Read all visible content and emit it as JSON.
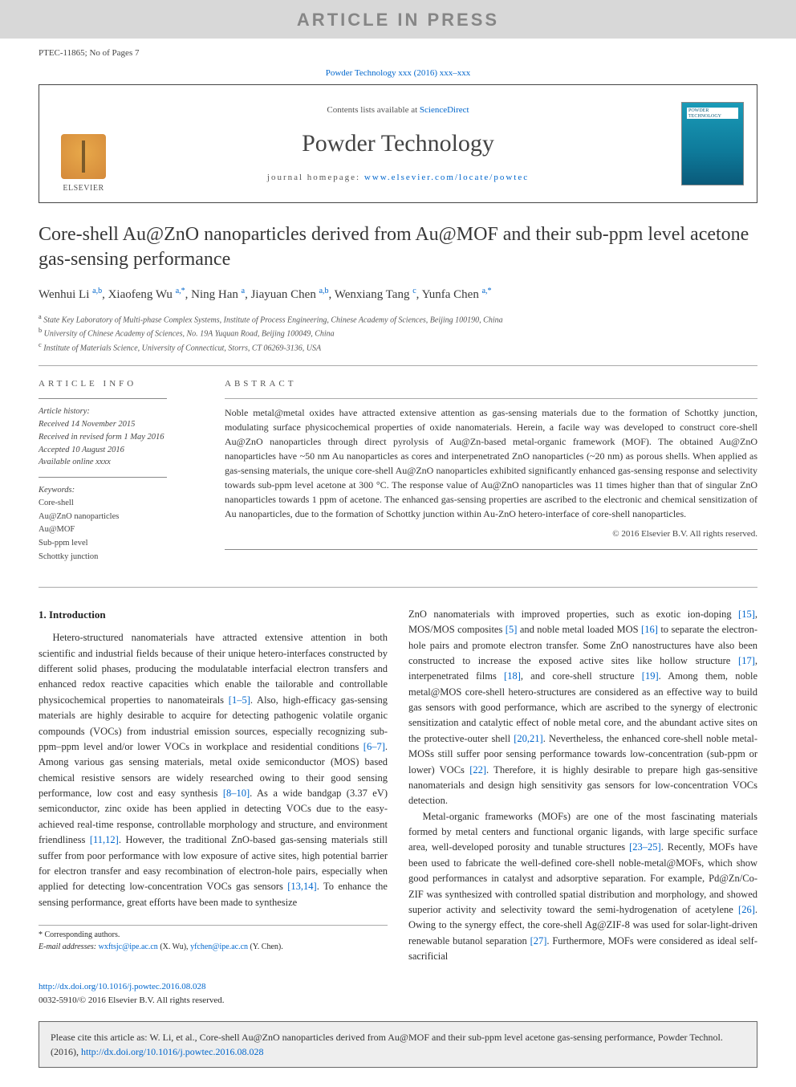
{
  "watermark": "ARTICLE IN PRESS",
  "article_ref": "PTEC-11865; No of Pages 7",
  "journal_ref_text": "Powder Technology xxx (2016) xxx–xxx",
  "header": {
    "contents_line_prefix": "Contents lists available at ",
    "contents_line_link": "ScienceDirect",
    "journal_name": "Powder Technology",
    "homepage_prefix": "journal homepage: ",
    "homepage_link": "www.elsevier.com/locate/powtec",
    "publisher": "ELSEVIER",
    "cover_label_1": "POWDER",
    "cover_label_2": "TECHNOLOGY"
  },
  "title": "Core-shell Au@ZnO nanoparticles derived from Au@MOF and their sub-ppm level acetone gas-sensing performance",
  "authors_html": "Wenhui Li <sup>a,b</sup>, Xiaofeng Wu <sup>a,*</sup>, Ning Han <sup>a</sup>, Jiayuan Chen <sup>a,b</sup>, Wenxiang Tang <sup>c</sup>, Yunfa Chen <sup>a,*</sup>",
  "affiliations": {
    "a": "State Key Laboratory of Multi-phase Complex Systems, Institute of Process Engineering, Chinese Academy of Sciences, Beijing 100190, China",
    "b": "University of Chinese Academy of Sciences, No. 19A Yuquan Road, Beijing 100049, China",
    "c": "Institute of Materials Science, University of Connecticut, Storrs, CT 06269-3136, USA"
  },
  "info": {
    "label": "article info",
    "history_label": "Article history:",
    "received": "Received 14 November 2015",
    "revised": "Received in revised form 1 May 2016",
    "accepted": "Accepted 10 August 2016",
    "online": "Available online xxxx",
    "keywords_label": "Keywords:",
    "keywords": [
      "Core-shell",
      "Au@ZnO nanoparticles",
      "Au@MOF",
      "Sub-ppm level",
      "Schottky junction"
    ]
  },
  "abstract": {
    "label": "abstract",
    "text": "Noble metal@metal oxides have attracted extensive attention as gas-sensing materials due to the formation of Schottky junction, modulating surface physicochemical properties of oxide nanomaterials. Herein, a facile way was developed to construct core-shell Au@ZnO nanoparticles through direct pyrolysis of Au@Zn-based metal-organic framework (MOF). The obtained Au@ZnO nanoparticles have ~50 nm Au nanoparticles as cores and interpenetrated ZnO nanoparticles (~20 nm) as porous shells. When applied as gas-sensing materials, the unique core-shell Au@ZnO nanoparticles exhibited significantly enhanced gas-sensing response and selectivity towards sub-ppm level acetone at 300 °C. The response value of Au@ZnO nanoparticles was 11 times higher than that of singular ZnO nanoparticles towards 1 ppm of acetone. The enhanced gas-sensing properties are ascribed to the electronic and chemical sensitization of Au nanoparticles, due to the formation of Schottky junction within Au-ZnO hetero-interface of core-shell nanoparticles.",
    "copyright": "© 2016 Elsevier B.V. All rights reserved."
  },
  "intro": {
    "heading": "1. Introduction",
    "col1": "Hetero-structured nanomaterials have attracted extensive attention in both scientific and industrial fields because of their unique hetero-interfaces constructed by different solid phases, producing the modulatable interfacial electron transfers and enhanced redox reactive capacities which enable the tailorable and controllable physicochemical properties to nanomateirals <span class=\"cite\">[1–5]</span>. Also, high-efficacy gas-sensing materials are highly desirable to acquire for detecting pathogenic volatile organic compounds (VOCs) from industrial emission sources, especially recognizing sub-ppm–ppm level and/or lower VOCs in workplace and residential conditions <span class=\"cite\">[6–7]</span>. Among various gas sensing materials, metal oxide semiconductor (MOS) based chemical resistive sensors are widely researched owing to their good sensing performance, low cost and easy synthesis <span class=\"cite\">[8–10]</span>. As a wide bandgap (3.37 eV) semiconductor, zinc oxide has been applied in detecting VOCs due to the easy-achieved real-time response, controllable morphology and structure, and environment friendliness <span class=\"cite\">[11,12]</span>. However, the traditional ZnO-based gas-sensing materials still suffer from poor performance with low exposure of active sites, high potential barrier for electron transfer and easy recombination of electron-hole pairs, especially when applied for detecting low-concentration VOCs gas sensors <span class=\"cite\">[13,14]</span>. To enhance the sensing performance, great efforts have been made to synthesize",
    "col2_p1": "ZnO nanomaterials with improved properties, such as exotic ion-doping <span class=\"cite\">[15]</span>, MOS/MOS composites <span class=\"cite\">[5]</span> and noble metal loaded MOS <span class=\"cite\">[16]</span> to separate the electron-hole pairs and promote electron transfer. Some ZnO nanostructures have also been constructed to increase the exposed active sites like hollow structure <span class=\"cite\">[17]</span>, interpenetrated films <span class=\"cite\">[18]</span>, and core-shell structure <span class=\"cite\">[19]</span>. Among them, noble metal@MOS core-shell hetero-structures are considered as an effective way to build gas sensors with good performance, which are ascribed to the synergy of electronic sensitization and catalytic effect of noble metal core, and the abundant active sites on the protective-outer shell <span class=\"cite\">[20,21]</span>. Nevertheless, the enhanced core-shell noble metal-MOSs still suffer poor sensing performance towards low-concentration (sub-ppm or lower) VOCs <span class=\"cite\">[22]</span>. Therefore, it is highly desirable to prepare high gas-sensitive nanomaterials and design high sensitivity gas sensors for low-concentration VOCs detection.",
    "col2_p2": "Metal-organic frameworks (MOFs) are one of the most fascinating materials formed by metal centers and functional organic ligands, with large specific surface area, well-developed porosity and tunable structures <span class=\"cite\">[23–25]</span>. Recently, MOFs have been used to fabricate the well-defined core-shell noble-metal@MOFs, which show good performances in catalyst and adsorptive separation. For example, Pd@Zn/Co-ZIF was synthesized with controlled spatial distribution and morphology, and showed superior activity and selectivity toward the semi-hydrogenation of acetylene <span class=\"cite\">[26]</span>. Owing to the synergy effect, the core-shell Ag@ZIF-8 was used for solar-light-driven renewable butanol separation <span class=\"cite\">[27]</span>. Furthermore, MOFs were considered as ideal self-sacrificial"
  },
  "corr": {
    "label": "* Corresponding authors.",
    "email_label": "E-mail addresses: ",
    "email1": "wxftsjc@ipe.ac.cn",
    "email1_name": " (X. Wu), ",
    "email2": "yfchen@ipe.ac.cn",
    "email2_name": " (Y. Chen)."
  },
  "doi": {
    "link": "http://dx.doi.org/10.1016/j.powtec.2016.08.028",
    "issn": "0032-5910/© 2016 Elsevier B.V. All rights reserved."
  },
  "citebox": {
    "text_prefix": "Please cite this article as: W. Li, et al., Core-shell Au@ZnO nanoparticles derived from Au@MOF and their sub-ppm level acetone gas-sensing performance, Powder Technol. (2016), ",
    "link": "http://dx.doi.org/10.1016/j.powtec.2016.08.028"
  },
  "colors": {
    "link": "#0066cc",
    "watermark_bg": "#d8d8d8",
    "watermark_fg": "#868686",
    "citebox_bg": "#eeeeee",
    "text": "#2a2a2a"
  }
}
